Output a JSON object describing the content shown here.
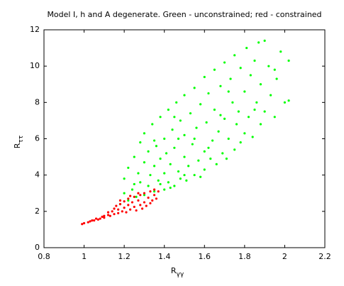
{
  "chart_data": {
    "type": "scatter",
    "title": "Model I, h and A degenerate. Green - unconstrained; red - constrained",
    "xlabel": {
      "text": "R",
      "subscript": "γγ"
    },
    "ylabel": {
      "text": "R",
      "subscript": "ττ"
    },
    "xlim": [
      0.8,
      2.2
    ],
    "xticks": [
      0.8,
      1,
      1.2,
      1.4,
      1.6,
      1.8,
      2,
      2.2
    ],
    "ylim": [
      0,
      12
    ],
    "yticks": [
      0,
      2,
      4,
      6,
      8,
      10,
      12
    ],
    "grid": false,
    "series": [
      {
        "color": "#00ff00",
        "x": [
          1.18,
          1.2,
          1.2,
          1.22,
          1.22,
          1.24,
          1.25,
          1.26,
          1.27,
          1.28,
          1.28,
          1.3,
          1.3,
          1.3,
          1.32,
          1.32,
          1.33,
          1.34,
          1.35,
          1.35,
          1.36,
          1.37,
          1.38,
          1.38,
          1.4,
          1.4,
          1.4,
          1.41,
          1.42,
          1.42,
          1.43,
          1.44,
          1.45,
          1.45,
          1.46,
          1.47,
          1.48,
          1.48,
          1.5,
          1.5,
          1.5,
          1.51,
          1.52,
          1.53,
          1.54,
          1.55,
          1.55,
          1.56,
          1.57,
          1.58,
          1.58,
          1.6,
          1.6,
          1.6,
          1.61,
          1.62,
          1.63,
          1.64,
          1.65,
          1.65,
          1.66,
          1.67,
          1.68,
          1.69,
          1.7,
          1.7,
          1.71,
          1.72,
          1.73,
          1.74,
          1.75,
          1.75,
          1.76,
          1.77,
          1.78,
          1.78,
          1.8,
          1.8,
          1.81,
          1.82,
          1.83,
          1.84,
          1.85,
          1.86,
          1.87,
          1.88,
          1.88,
          1.9,
          1.9,
          1.92,
          1.93,
          1.95,
          1.96,
          1.98,
          2.0,
          2.02,
          2.02,
          1.25,
          1.35,
          1.45,
          1.55,
          1.62,
          1.68,
          1.72,
          1.85,
          1.95,
          1.47,
          1.38,
          1.43,
          1.5
        ],
        "values": [
          2.4,
          3.0,
          3.8,
          2.6,
          4.4,
          3.2,
          5.0,
          2.8,
          4.1,
          3.6,
          5.8,
          2.9,
          4.7,
          6.3,
          3.4,
          5.3,
          4.0,
          6.8,
          3.1,
          4.5,
          5.6,
          3.7,
          7.2,
          4.9,
          3.2,
          4.1,
          6.0,
          5.2,
          7.6,
          3.6,
          4.6,
          6.5,
          3.4,
          5.5,
          8.0,
          4.2,
          7.0,
          3.8,
          5.0,
          6.2,
          8.4,
          3.7,
          4.5,
          7.4,
          5.7,
          4.0,
          8.8,
          6.6,
          4.8,
          3.9,
          7.9,
          5.3,
          9.4,
          4.3,
          6.9,
          8.5,
          4.9,
          5.9,
          7.6,
          9.8,
          4.6,
          6.4,
          8.9,
          5.2,
          10.2,
          7.1,
          4.9,
          6.0,
          9.3,
          8.0,
          5.4,
          10.6,
          6.8,
          7.5,
          5.8,
          9.9,
          8.6,
          6.3,
          11.0,
          7.2,
          9.5,
          6.1,
          10.3,
          8.0,
          11.3,
          6.8,
          9.0,
          11.4,
          7.5,
          10.0,
          8.4,
          7.2,
          9.3,
          10.8,
          8.0,
          10.3,
          8.1,
          3.5,
          5.9,
          7.2,
          6.0,
          5.5,
          7.3,
          8.6,
          7.6,
          9.8,
          6.0,
          3.5,
          3.3,
          4.0
        ]
      },
      {
        "color": "#ff0000",
        "x": [
          0.99,
          1.0,
          1.02,
          1.03,
          1.05,
          1.06,
          1.08,
          1.09,
          1.1,
          1.1,
          1.12,
          1.12,
          1.13,
          1.14,
          1.15,
          1.15,
          1.16,
          1.17,
          1.17,
          1.18,
          1.19,
          1.2,
          1.2,
          1.21,
          1.22,
          1.22,
          1.23,
          1.24,
          1.25,
          1.25,
          1.26,
          1.27,
          1.28,
          1.28,
          1.29,
          1.3,
          1.3,
          1.31,
          1.32,
          1.33,
          1.33,
          1.34,
          1.35,
          1.35,
          1.36,
          1.37,
          1.18,
          1.23,
          1.27,
          1.07,
          1.04
        ],
        "values": [
          1.3,
          1.35,
          1.4,
          1.45,
          1.5,
          1.6,
          1.6,
          1.7,
          1.75,
          1.65,
          1.8,
          1.95,
          1.75,
          2.0,
          1.85,
          2.15,
          2.3,
          1.9,
          2.1,
          2.4,
          2.0,
          2.2,
          2.55,
          1.95,
          2.35,
          2.7,
          2.1,
          2.5,
          2.25,
          2.8,
          2.05,
          2.6,
          2.35,
          2.9,
          2.15,
          2.5,
          3.0,
          2.3,
          2.75,
          2.45,
          3.1,
          2.6,
          2.9,
          3.2,
          2.7,
          3.1,
          2.6,
          2.85,
          3.0,
          1.55,
          1.5
        ]
      }
    ]
  }
}
